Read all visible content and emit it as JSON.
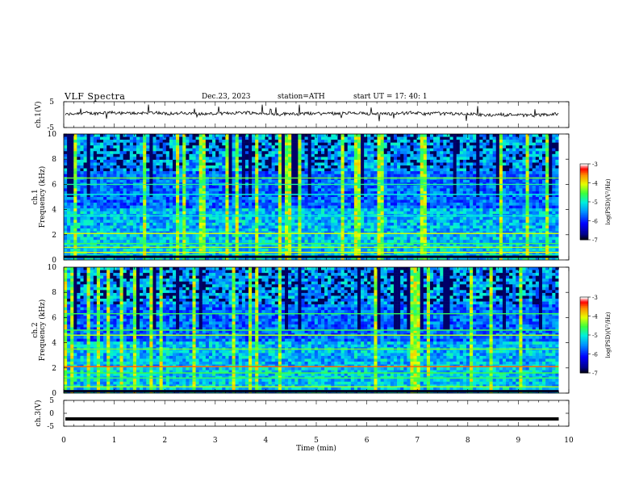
{
  "header": {
    "title": "VLF  Spectra",
    "date": "Dec.23, 2023",
    "station": "station=ATH",
    "start": "start  UT  =   17: 40: 1"
  },
  "chart_data": [
    {
      "type": "line",
      "name": "ch1-waveform",
      "ylabel": "ch.1(V)",
      "ylim": [
        -5,
        5
      ],
      "yticks": [
        "5",
        "-5"
      ],
      "xlim": [
        0,
        10
      ],
      "baseline": 0,
      "noise_amplitude": 0.6
    },
    {
      "type": "heatmap",
      "name": "ch1-spectrogram",
      "ylabel_top": "ch.1",
      "ylabel": "Frequency  (kHz)",
      "ylim": [
        0,
        10
      ],
      "yticks": [
        "0",
        "2",
        "4",
        "6",
        "8",
        "10"
      ],
      "xlim": [
        0,
        10
      ],
      "data_end_min": 9.8,
      "colorbar": {
        "label": "log(PSD)(V²/Hz)",
        "range": [
          -7,
          -3
        ],
        "ticks": [
          "-3",
          "-4",
          "-5",
          "-6",
          "-7"
        ]
      }
    },
    {
      "type": "heatmap",
      "name": "ch2-spectrogram",
      "ylabel_top": "ch.2",
      "ylabel": "Frequency  (kHz)",
      "ylim": [
        0,
        10
      ],
      "yticks": [
        "0",
        "2",
        "4",
        "6",
        "8",
        "10"
      ],
      "xlim": [
        0,
        10
      ],
      "data_end_min": 9.8,
      "colorbar": {
        "label": "log(PSD)(V²/Hz)",
        "range": [
          -7,
          -3
        ],
        "ticks": [
          "-3",
          "-4",
          "-5",
          "-6",
          "-7"
        ]
      }
    },
    {
      "type": "line",
      "name": "ch3-waveform",
      "ylabel": "ch.3(V)",
      "ylim": [
        -5,
        5
      ],
      "yticks": [
        "5",
        "0",
        "-5"
      ],
      "xlim": [
        0,
        10
      ],
      "baseline": -2.2
    }
  ],
  "xaxis": {
    "label": "Time  (min)",
    "ticks": [
      "0",
      "1",
      "2",
      "3",
      "4",
      "5",
      "6",
      "7",
      "8",
      "9",
      "10"
    ]
  }
}
